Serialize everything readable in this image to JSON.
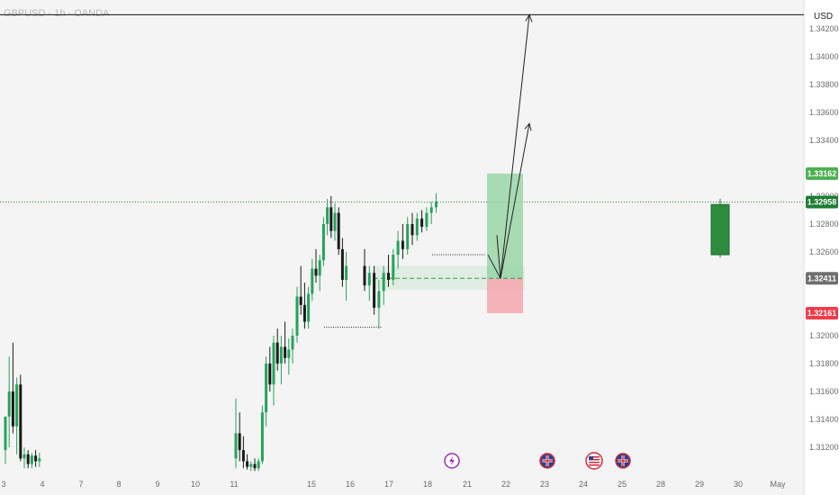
{
  "chart_data": {
    "type": "candlestick",
    "title": "GBPUSD · 1h · OANDA",
    "currency": "USD",
    "ylim": [
      1.31,
      1.3438
    ],
    "y_ticks": [
      "1.34200",
      "1.34000",
      "1.33800",
      "1.33600",
      "1.33400",
      "1.33000",
      "1.32800",
      "1.32600",
      "1.32000",
      "1.31800",
      "1.31600",
      "1.31400",
      "1.31200"
    ],
    "x_ticks": [
      "3",
      "4",
      "7",
      "8",
      "9",
      "10",
      "11",
      "15",
      "16",
      "17",
      "18",
      "21",
      "22",
      "23",
      "24",
      "25",
      "28",
      "29",
      "30",
      "May"
    ],
    "candles": [
      {
        "o": 1.3118,
        "h": 1.3142,
        "l": 1.3108,
        "c": 1.3142
      },
      {
        "o": 1.3142,
        "h": 1.3185,
        "l": 1.312,
        "c": 1.316
      },
      {
        "o": 1.316,
        "h": 1.3195,
        "l": 1.313,
        "c": 1.3135
      },
      {
        "o": 1.3135,
        "h": 1.317,
        "l": 1.3115,
        "c": 1.3165
      },
      {
        "o": 1.3165,
        "h": 1.3172,
        "l": 1.311,
        "c": 1.3112
      },
      {
        "o": 1.3112,
        "h": 1.312,
        "l": 1.3105,
        "c": 1.3115
      },
      {
        "o": 1.3115,
        "h": 1.3118,
        "l": 1.3105,
        "c": 1.3108
      },
      {
        "o": 1.3108,
        "h": 1.3116,
        "l": 1.3105,
        "c": 1.3114
      },
      {
        "o": 1.3114,
        "h": 1.3118,
        "l": 1.3106,
        "c": 1.311
      },
      {
        "o": 1.311,
        "h": 1.3116,
        "l": 1.3106,
        "c": 1.3112
      },
      {
        "o": 1.3112,
        "h": 1.3155,
        "l": 1.3105,
        "c": 1.313
      },
      {
        "o": 1.313,
        "h": 1.3145,
        "l": 1.311,
        "c": 1.3118
      },
      {
        "o": 1.3118,
        "h": 1.3128,
        "l": 1.3105,
        "c": 1.311
      },
      {
        "o": 1.311,
        "h": 1.3115,
        "l": 1.3104,
        "c": 1.3106
      },
      {
        "o": 1.3106,
        "h": 1.311,
        "l": 1.3103,
        "c": 1.3108
      },
      {
        "o": 1.3108,
        "h": 1.3112,
        "l": 1.3103,
        "c": 1.3105
      },
      {
        "o": 1.3105,
        "h": 1.3112,
        "l": 1.3103,
        "c": 1.311
      },
      {
        "o": 1.311,
        "h": 1.315,
        "l": 1.3108,
        "c": 1.3145
      },
      {
        "o": 1.3145,
        "h": 1.3185,
        "l": 1.3135,
        "c": 1.318
      },
      {
        "o": 1.318,
        "h": 1.3192,
        "l": 1.316,
        "c": 1.3165
      },
      {
        "o": 1.3165,
        "h": 1.32,
        "l": 1.315,
        "c": 1.3195
      },
      {
        "o": 1.3195,
        "h": 1.3205,
        "l": 1.3175,
        "c": 1.318
      },
      {
        "o": 1.318,
        "h": 1.32,
        "l": 1.3165,
        "c": 1.3192
      },
      {
        "o": 1.3192,
        "h": 1.321,
        "l": 1.318,
        "c": 1.3184
      },
      {
        "o": 1.3184,
        "h": 1.3198,
        "l": 1.3172,
        "c": 1.319
      },
      {
        "o": 1.319,
        "h": 1.3205,
        "l": 1.318,
        "c": 1.32
      },
      {
        "o": 1.32,
        "h": 1.3235,
        "l": 1.3195,
        "c": 1.3228
      },
      {
        "o": 1.3228,
        "h": 1.325,
        "l": 1.3215,
        "c": 1.3222
      },
      {
        "o": 1.3222,
        "h": 1.3238,
        "l": 1.3205,
        "c": 1.321
      },
      {
        "o": 1.321,
        "h": 1.3235,
        "l": 1.3205,
        "c": 1.323
      },
      {
        "o": 1.323,
        "h": 1.3255,
        "l": 1.3225,
        "c": 1.3248
      },
      {
        "o": 1.3248,
        "h": 1.3262,
        "l": 1.3238,
        "c": 1.3243
      },
      {
        "o": 1.3243,
        "h": 1.3258,
        "l": 1.3232,
        "c": 1.3254
      },
      {
        "o": 1.3254,
        "h": 1.3285,
        "l": 1.325,
        "c": 1.328
      },
      {
        "o": 1.328,
        "h": 1.3298,
        "l": 1.3272,
        "c": 1.3292
      },
      {
        "o": 1.3292,
        "h": 1.33,
        "l": 1.327,
        "c": 1.3275
      },
      {
        "o": 1.3275,
        "h": 1.3295,
        "l": 1.3268,
        "c": 1.3288
      },
      {
        "o": 1.3288,
        "h": 1.3292,
        "l": 1.3258,
        "c": 1.3262
      },
      {
        "o": 1.3262,
        "h": 1.327,
        "l": 1.3235,
        "c": 1.324
      },
      {
        "o": 1.324,
        "h": 1.326,
        "l": 1.3225,
        "c": 1.325
      },
      {
        "o": 1.325,
        "h": 1.3262,
        "l": 1.3232,
        "c": 1.3236
      },
      {
        "o": 1.3236,
        "h": 1.325,
        "l": 1.3225,
        "c": 1.3245
      },
      {
        "o": 1.3245,
        "h": 1.325,
        "l": 1.3215,
        "c": 1.322
      },
      {
        "o": 1.322,
        "h": 1.324,
        "l": 1.3205,
        "c": 1.3232
      },
      {
        "o": 1.3232,
        "h": 1.325,
        "l": 1.3222,
        "c": 1.3245
      },
      {
        "o": 1.3245,
        "h": 1.3258,
        "l": 1.3235,
        "c": 1.324
      },
      {
        "o": 1.324,
        "h": 1.3262,
        "l": 1.3236,
        "c": 1.3258
      },
      {
        "o": 1.3258,
        "h": 1.3275,
        "l": 1.3248,
        "c": 1.3268
      },
      {
        "o": 1.3268,
        "h": 1.328,
        "l": 1.3255,
        "c": 1.3262
      },
      {
        "o": 1.3262,
        "h": 1.3285,
        "l": 1.3258,
        "c": 1.328
      },
      {
        "o": 1.328,
        "h": 1.3288,
        "l": 1.3265,
        "c": 1.3272
      },
      {
        "o": 1.3272,
        "h": 1.3288,
        "l": 1.3268,
        "c": 1.3284
      },
      {
        "o": 1.3284,
        "h": 1.329,
        "l": 1.3274,
        "c": 1.3278
      },
      {
        "o": 1.3278,
        "h": 1.3292,
        "l": 1.3275,
        "c": 1.3288
      },
      {
        "o": 1.3288,
        "h": 1.3296,
        "l": 1.328,
        "c": 1.3292
      },
      {
        "o": 1.3292,
        "h": 1.3302,
        "l": 1.3288,
        "c": 1.3296
      }
    ],
    "levels": {
      "target_top": 1.343,
      "current_price": 1.32958,
      "entry": 1.32411,
      "tp_zone_top": 1.33162,
      "sl_zone_bottom": 1.32161,
      "fvg_top": 1.325,
      "fvg_bottom": 1.3233,
      "swing_high_line": 1.3258,
      "swing_low_line": 1.3206
    },
    "price_tags": [
      {
        "label": "1.33162",
        "value": 1.33162,
        "color": "#4caf50"
      },
      {
        "label": "1.32958",
        "value": 1.32958,
        "color": "#1e7d32"
      },
      {
        "label": "1.32411",
        "value": 1.32411,
        "color": "#6f6f6f"
      },
      {
        "label": "1.32161",
        "value": 1.32161,
        "color": "#ef3b4b"
      }
    ],
    "projection_candle": {
      "o": 1.3258,
      "h": 1.3298,
      "l": 1.3256,
      "c": 1.3294
    },
    "colors": {
      "up": "#26a25b",
      "down": "#1a1a1a",
      "tp_zone": "#8fd19e",
      "sl_zone": "#f3a6ae",
      "grid_dotted": "#2e7d32"
    },
    "event_icons": [
      "lightning-icon",
      "uk-flag-icon",
      "us-flag-icon",
      "uk-flag-icon"
    ]
  }
}
